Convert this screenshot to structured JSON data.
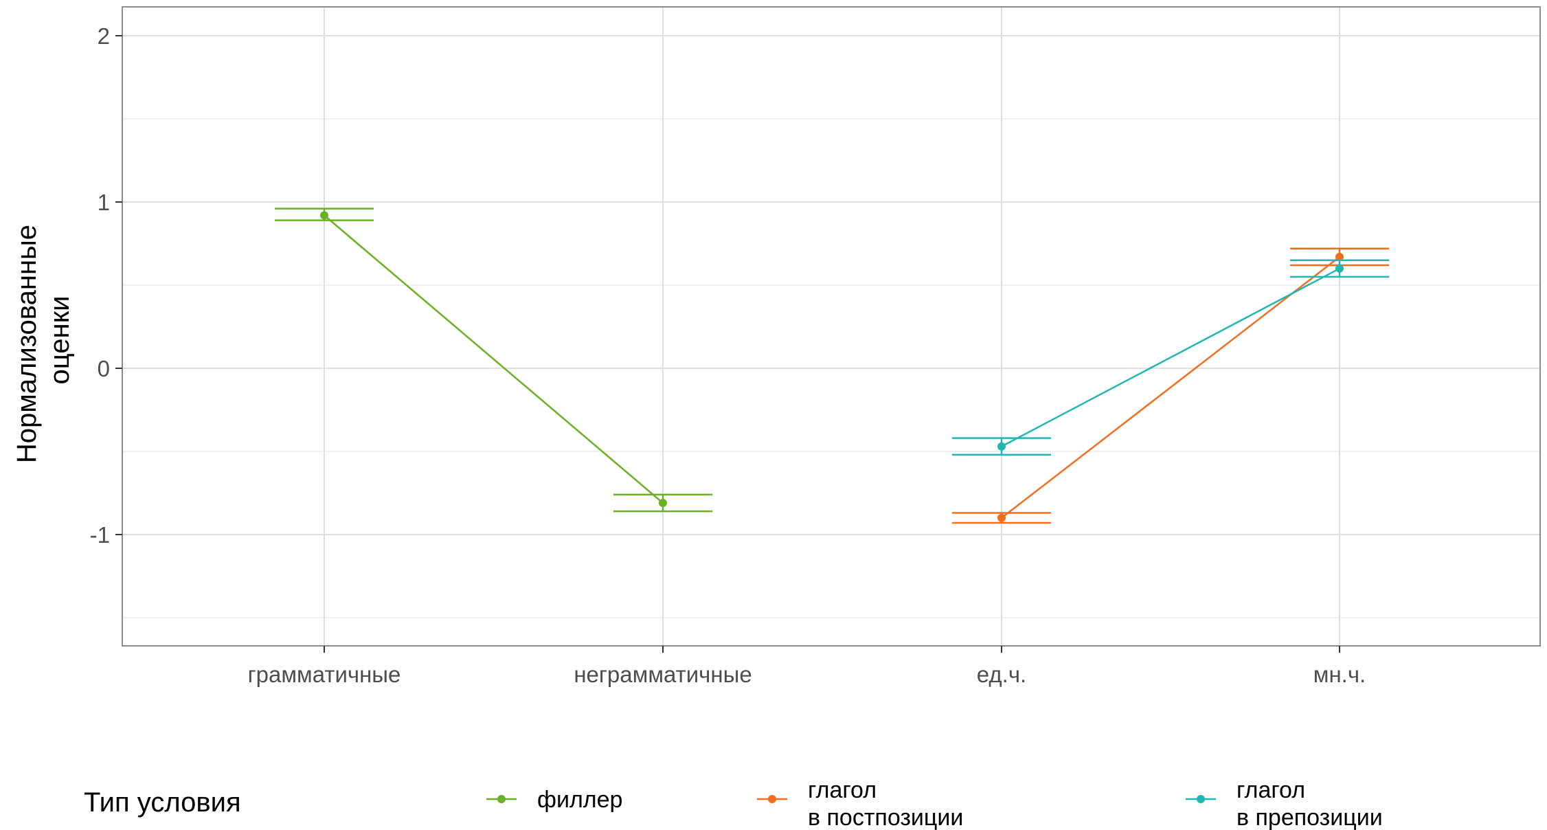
{
  "chart_data": {
    "type": "line",
    "categories": [
      "грамматичные",
      "неграмматичные",
      "ед.ч.",
      "мн.ч."
    ],
    "ylabel_lines": [
      "Нормализованные",
      "оценки"
    ],
    "xlabel": "",
    "ylim": [
      -1.68,
      2.2
    ],
    "yticks": [
      2,
      1,
      0,
      -1
    ],
    "ytick_labels": [
      "2",
      "1",
      "0",
      "-1"
    ],
    "grid": true,
    "legend": {
      "title": "Тип условия",
      "position": "bottom",
      "entries": [
        {
          "label_lines": [
            "филлер"
          ],
          "color": "#6ab023"
        },
        {
          "label_lines": [
            "глагол",
            "в постпозиции"
          ],
          "color": "#f26d1f"
        },
        {
          "label_lines": [
            "глагол",
            "в препозиции"
          ],
          "color": "#1fb8b0"
        }
      ]
    },
    "series": [
      {
        "name": "филлер",
        "color": "#6ab023",
        "points": [
          {
            "x": "грамматичные",
            "y": 0.92,
            "lo": 0.89,
            "hi": 0.96
          },
          {
            "x": "неграмматичные",
            "y": -0.81,
            "lo": -0.86,
            "hi": -0.76
          }
        ]
      },
      {
        "name": "глагол в постпозиции",
        "color": "#f26d1f",
        "points": [
          {
            "x": "ед.ч.",
            "y": -0.9,
            "lo": -0.93,
            "hi": -0.87
          },
          {
            "x": "мн.ч.",
            "y": 0.67,
            "lo": 0.62,
            "hi": 0.72
          }
        ]
      },
      {
        "name": "глагол в препозиции",
        "color": "#1fb8b0",
        "points": [
          {
            "x": "ед.ч.",
            "y": -0.47,
            "lo": -0.52,
            "hi": -0.42
          },
          {
            "x": "мн.ч.",
            "y": 0.6,
            "lo": 0.55,
            "hi": 0.65
          }
        ]
      }
    ]
  }
}
